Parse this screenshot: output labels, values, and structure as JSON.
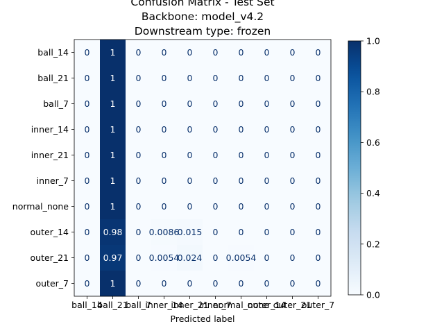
{
  "chart_data": {
    "type": "heatmap",
    "title_lines": [
      "Confusion Matrix - Test Set",
      "Backbone: model_v4.2",
      "Downstream type: frozen"
    ],
    "xlabel": "Predicted label",
    "ylabel": "",
    "row_labels": [
      "ball_14",
      "ball_21",
      "ball_7",
      "inner_14",
      "inner_21",
      "inner_7",
      "normal_none",
      "outer_14",
      "outer_21",
      "outer_7"
    ],
    "col_labels": [
      "ball_14",
      "ball_21",
      "ball_7",
      "inner_14",
      "inner_21",
      "inner_7",
      "normal_none",
      "outer_14",
      "outer_21",
      "outer_7"
    ],
    "values": [
      [
        0,
        1,
        0,
        0,
        0,
        0,
        0,
        0,
        0,
        0
      ],
      [
        0,
        1,
        0,
        0,
        0,
        0,
        0,
        0,
        0,
        0
      ],
      [
        0,
        1,
        0,
        0,
        0,
        0,
        0,
        0,
        0,
        0
      ],
      [
        0,
        1,
        0,
        0,
        0,
        0,
        0,
        0,
        0,
        0
      ],
      [
        0,
        1,
        0,
        0,
        0,
        0,
        0,
        0,
        0,
        0
      ],
      [
        0,
        1,
        0,
        0,
        0,
        0,
        0,
        0,
        0,
        0
      ],
      [
        0,
        1,
        0,
        0,
        0,
        0,
        0,
        0,
        0,
        0
      ],
      [
        0,
        0.98,
        0,
        0.0086,
        0.015,
        0,
        0,
        0,
        0,
        0
      ],
      [
        0,
        0.97,
        0,
        0.0054,
        0.024,
        0,
        0.0054,
        0,
        0,
        0
      ],
      [
        0,
        1,
        0,
        0,
        0,
        0,
        0,
        0,
        0,
        0
      ]
    ],
    "cell_labels": [
      [
        "0",
        "1",
        "0",
        "0",
        "0",
        "0",
        "0",
        "0",
        "0",
        "0"
      ],
      [
        "0",
        "1",
        "0",
        "0",
        "0",
        "0",
        "0",
        "0",
        "0",
        "0"
      ],
      [
        "0",
        "1",
        "0",
        "0",
        "0",
        "0",
        "0",
        "0",
        "0",
        "0"
      ],
      [
        "0",
        "1",
        "0",
        "0",
        "0",
        "0",
        "0",
        "0",
        "0",
        "0"
      ],
      [
        "0",
        "1",
        "0",
        "0",
        "0",
        "0",
        "0",
        "0",
        "0",
        "0"
      ],
      [
        "0",
        "1",
        "0",
        "0",
        "0",
        "0",
        "0",
        "0",
        "0",
        "0"
      ],
      [
        "0",
        "1",
        "0",
        "0",
        "0",
        "0",
        "0",
        "0",
        "0",
        "0"
      ],
      [
        "0",
        "0.98",
        "0",
        "0.0086",
        "0.015",
        "0",
        "0",
        "0",
        "0",
        "0"
      ],
      [
        "0",
        "0.97",
        "0",
        "0.0054",
        "0.024",
        "0",
        "0.0054",
        "0",
        "0",
        "0"
      ],
      [
        "0",
        "1",
        "0",
        "0",
        "0",
        "0",
        "0",
        "0",
        "0",
        "0"
      ]
    ],
    "colormap": "Blues",
    "colorbar": {
      "range": [
        0,
        1
      ],
      "ticks": [
        "0.0",
        "0.2",
        "0.4",
        "0.6",
        "0.8",
        "1.0"
      ]
    }
  }
}
